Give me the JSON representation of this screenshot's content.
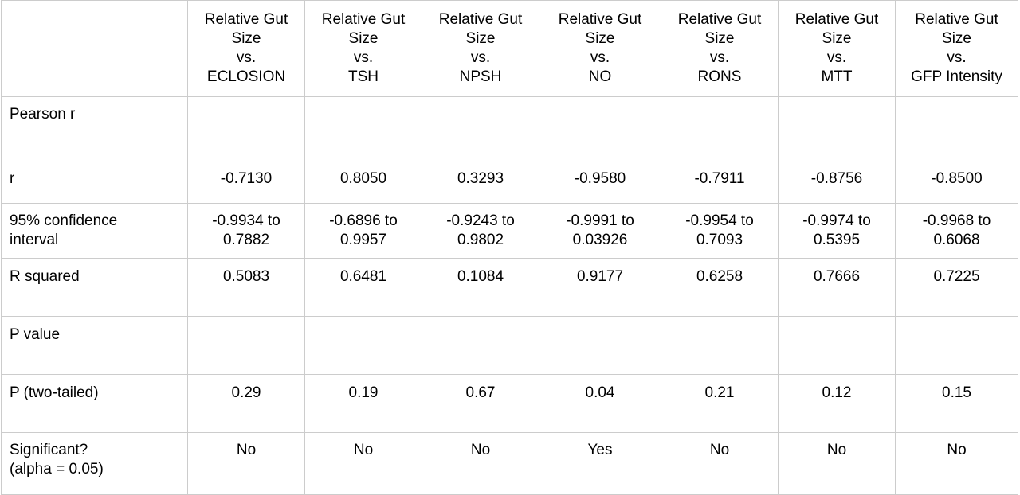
{
  "table": {
    "corner": "",
    "columns": [
      "Relative Gut\nSize\nvs.\nECLOSION",
      "Relative Gut\nSize\nvs.\nTSH",
      "Relative Gut\nSize\nvs.\nNPSH",
      "Relative Gut\nSize\nvs.\nNO",
      "Relative Gut\nSize\nvs.\nRONS",
      "Relative Gut\nSize\nvs.\nMTT",
      "Relative Gut\nSize\nvs.\nGFP Intensity"
    ],
    "rows": [
      {
        "label": "Pearson r",
        "values": [
          "",
          "",
          "",
          "",
          "",
          "",
          ""
        ]
      },
      {
        "label": "r",
        "values": [
          "-0.7130",
          "0.8050",
          "0.3293",
          "-0.9580",
          "-0.7911",
          "-0.8756",
          "-0.8500"
        ]
      },
      {
        "label": "95% confidence\ninterval",
        "values": [
          "-0.9934 to\n0.7882",
          "-0.6896 to\n0.9957",
          "-0.9243 to\n0.9802",
          "-0.9991 to\n0.03926",
          "-0.9954 to\n0.7093",
          "-0.9974 to\n0.5395",
          "-0.9968 to\n0.6068"
        ]
      },
      {
        "label": "R squared",
        "values": [
          "0.5083",
          "0.6481",
          "0.1084",
          "0.9177",
          "0.6258",
          "0.7666",
          "0.7225"
        ]
      },
      {
        "label": "P value",
        "values": [
          "",
          "",
          "",
          "",
          "",
          "",
          ""
        ]
      },
      {
        "label": "P (two-tailed)",
        "values": [
          "0.29",
          "0.19",
          "0.67",
          "0.04",
          "0.21",
          "0.12",
          "0.15"
        ]
      },
      {
        "label": "Significant?\n(alpha = 0.05)",
        "values": [
          "No",
          "No",
          "No",
          "Yes",
          "No",
          "No",
          "No"
        ]
      }
    ]
  }
}
